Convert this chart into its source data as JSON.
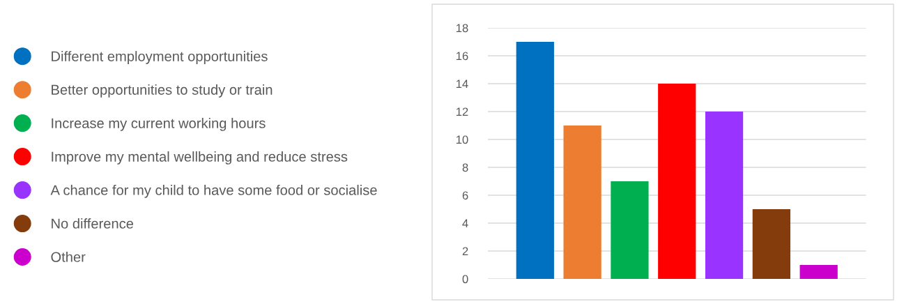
{
  "chart_data": {
    "type": "bar",
    "categories": [
      null,
      null,
      null,
      null,
      null,
      null,
      null
    ],
    "series": [
      {
        "name": "Different employment opportunities",
        "color": "#0070c0",
        "values": [
          17,
          null,
          null,
          null,
          null,
          null,
          null
        ]
      },
      {
        "name": "Better opportunities to study or train",
        "color": "#ed7d31",
        "values": [
          null,
          11,
          null,
          null,
          null,
          null,
          null
        ]
      },
      {
        "name": "Increase my current working hours",
        "color": "#00b050",
        "values": [
          null,
          null,
          7,
          null,
          null,
          null,
          null
        ]
      },
      {
        "name": "Improve my mental wellbeing and reduce stress",
        "color": "#ff0000",
        "values": [
          null,
          null,
          null,
          14,
          null,
          null,
          null
        ]
      },
      {
        "name": "A chance for my child to have some food or socialise",
        "color": "#9933ff",
        "values": [
          null,
          null,
          null,
          null,
          12,
          null,
          null
        ]
      },
      {
        "name": "No difference",
        "color": "#843c0c",
        "values": [
          null,
          null,
          null,
          null,
          null,
          5,
          null
        ]
      },
      {
        "name": "Other",
        "color": "#cc00cc",
        "values": [
          null,
          null,
          null,
          null,
          null,
          null,
          1
        ]
      }
    ],
    "ylim": [
      0,
      18
    ],
    "yticks": [
      0,
      2,
      4,
      6,
      8,
      10,
      12,
      14,
      16,
      18
    ],
    "grid": "y",
    "legend": "left",
    "tick_labels": "y"
  }
}
